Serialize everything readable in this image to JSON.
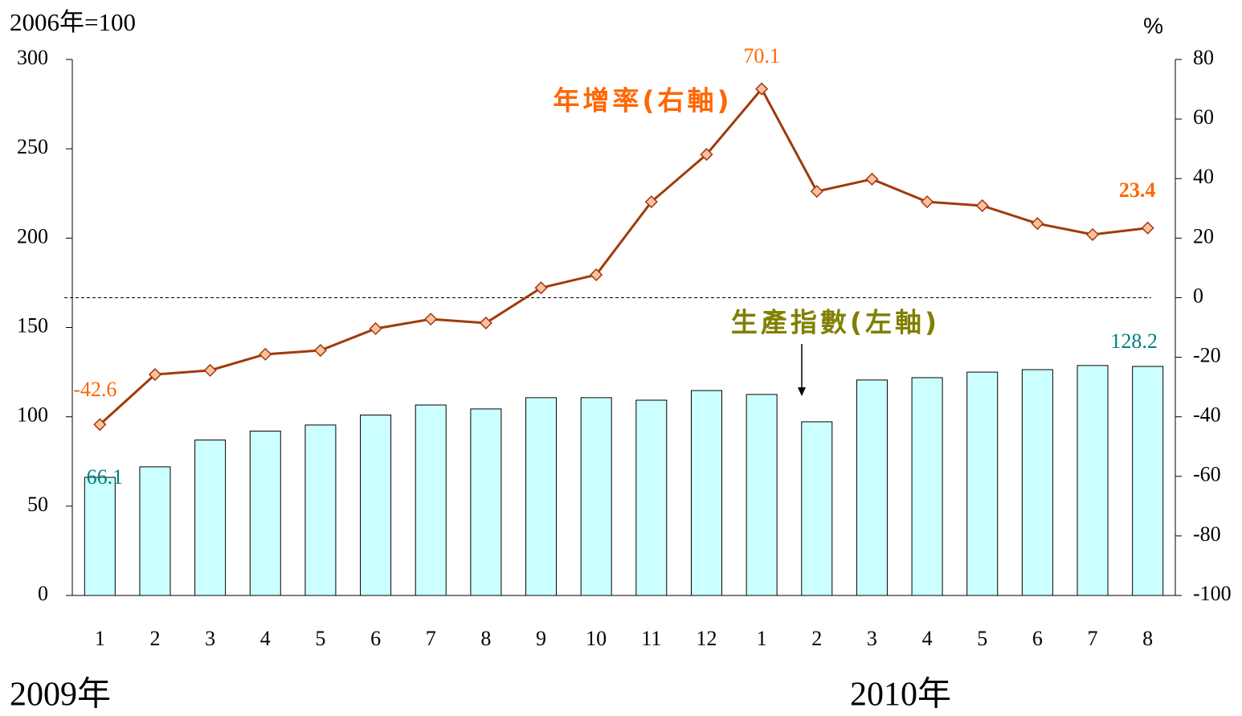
{
  "chart_data": {
    "type": "bar",
    "categories": [
      "1",
      "2",
      "3",
      "4",
      "5",
      "6",
      "7",
      "8",
      "9",
      "10",
      "11",
      "12",
      "1",
      "2",
      "3",
      "4",
      "5",
      "6",
      "7",
      "8"
    ],
    "series": [
      {
        "name": "生產指數(左軸)",
        "type": "bar",
        "axis": "y",
        "color": "#ccffff",
        "values": [
          66.1,
          72,
          87,
          92,
          95.4,
          101,
          106.6,
          104.4,
          110.7,
          110.7,
          109.3,
          114.7,
          112.5,
          97.2,
          120.6,
          121.9,
          125,
          126.4,
          128.7,
          128.2
        ]
      },
      {
        "name": "年增率(右軸)",
        "type": "line",
        "axis": "y2",
        "color": "#a03a0a",
        "values": [
          -42.6,
          -25.8,
          -24.4,
          -19,
          -17.7,
          -10.4,
          -7.2,
          -8.5,
          3.3,
          7.7,
          32.2,
          48.1,
          70.1,
          35.7,
          39.8,
          32.2,
          30.9,
          24.9,
          21.2,
          23.4
        ]
      }
    ],
    "ylim": [
      0,
      300
    ],
    "yticks": [
      0,
      50,
      100,
      150,
      200,
      250,
      300
    ],
    "y2lim": [
      -100,
      80
    ],
    "y2ticks": [
      -100,
      -80,
      -60,
      -40,
      -20,
      0,
      20,
      40,
      60,
      80
    ],
    "y_label": "2006年=100",
    "y2_label": "%",
    "x_groups": [
      "2009年",
      "2010年"
    ]
  }
}
